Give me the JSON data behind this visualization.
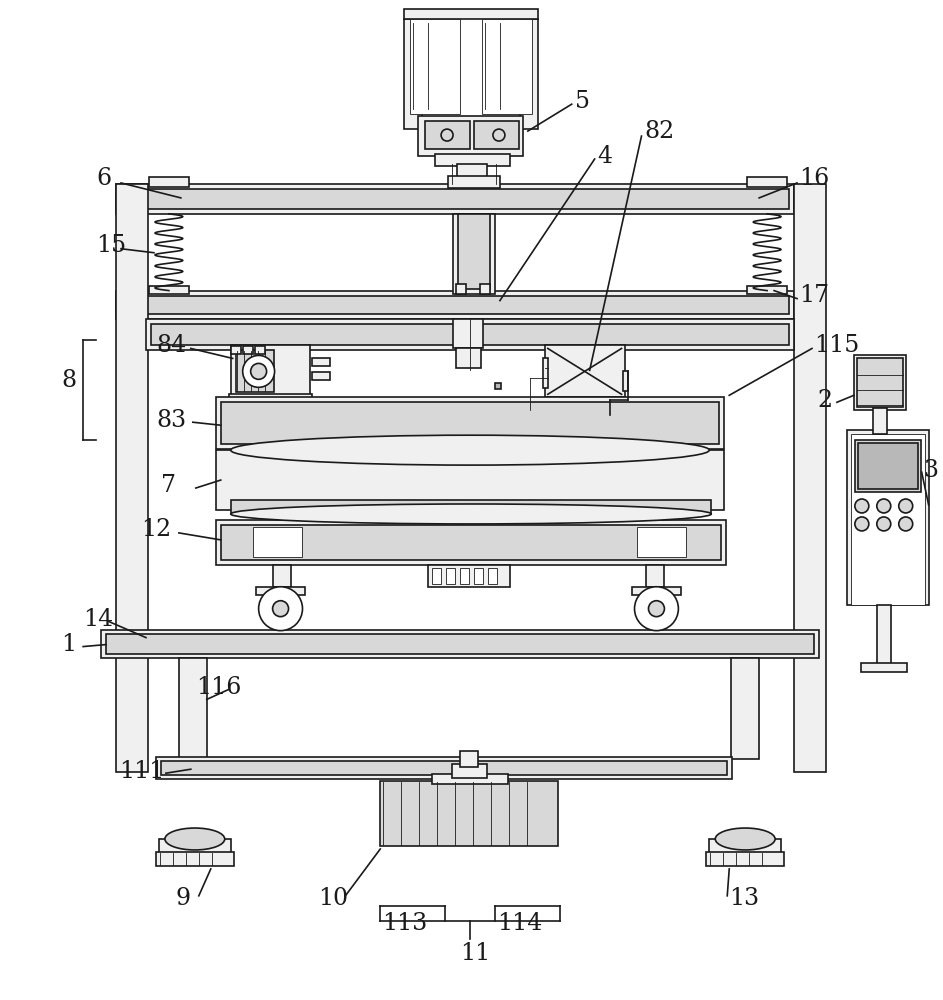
{
  "bg_color": "#ffffff",
  "line_color": "#1a1a1a",
  "lw": 1.2,
  "lw_thin": 0.6,
  "fc_light": "#f0f0f0",
  "fc_mid": "#d8d8d8",
  "fc_dark": "#b8b8b8"
}
